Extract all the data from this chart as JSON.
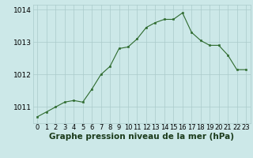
{
  "hours": [
    0,
    1,
    2,
    3,
    4,
    5,
    6,
    7,
    8,
    9,
    10,
    11,
    12,
    13,
    14,
    15,
    16,
    17,
    18,
    19,
    20,
    21,
    22,
    23
  ],
  "pressure": [
    1010.7,
    1010.85,
    1011.0,
    1011.15,
    1011.2,
    1011.15,
    1011.55,
    1012.0,
    1012.25,
    1012.8,
    1012.85,
    1013.1,
    1013.45,
    1013.6,
    1013.7,
    1013.7,
    1013.9,
    1013.3,
    1013.05,
    1012.9,
    1012.9,
    1012.6,
    1012.15,
    1012.15
  ],
  "line_color": "#2d6a2d",
  "marker_color": "#2d6a2d",
  "bg_color": "#cce8e8",
  "grid_color": "#aacaca",
  "ylim": [
    1010.5,
    1014.15
  ],
  "yticks": [
    1011,
    1012,
    1013,
    1014
  ],
  "xlabel": "Graphe pression niveau de la mer (hPa)",
  "xlabel_fontsize": 7.5,
  "tick_fontsize": 6.5,
  "figsize": [
    3.2,
    2.0
  ],
  "dpi": 100
}
